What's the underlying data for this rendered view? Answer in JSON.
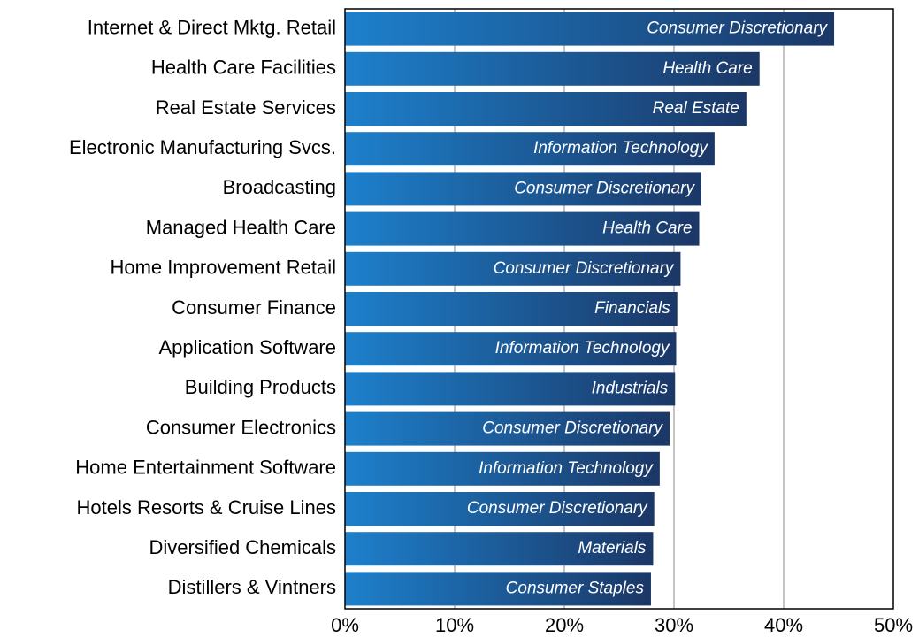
{
  "chart_data": {
    "type": "bar",
    "orientation": "horizontal",
    "categories": [
      "Internet & Direct Mktg. Retail",
      "Health Care Facilities",
      "Real Estate Services",
      "Electronic Manufacturing Svcs.",
      "Broadcasting",
      "Managed Health Care",
      "Home Improvement Retail",
      "Consumer Finance",
      "Application Software",
      "Building Products",
      "Consumer Electronics",
      "Home Entertainment Software",
      "Hotels Resorts & Cruise Lines",
      "Diversified Chemicals",
      "Distillers & Vintners"
    ],
    "values": [
      44.6,
      37.8,
      36.6,
      33.7,
      32.5,
      32.3,
      30.6,
      30.3,
      30.2,
      30.1,
      29.6,
      28.7,
      28.2,
      28.1,
      27.9
    ],
    "sectors": [
      "Consumer Discretionary",
      "Health Care",
      "Real Estate",
      "Information Technology",
      "Consumer Discretionary",
      "Health Care",
      "Consumer Discretionary",
      "Financials",
      "Information Technology",
      "Industrials",
      "Consumer Discretionary",
      "Information Technology",
      "Consumer Discretionary",
      "Materials",
      "Consumer Staples"
    ],
    "colors": [
      "#1d80cc",
      "#1b3766"
    ],
    "xlim": [
      0,
      50
    ],
    "xticks": [
      {
        "value": 0,
        "label": "0%"
      },
      {
        "value": 10,
        "label": "10%"
      },
      {
        "value": 20,
        "label": "20%"
      },
      {
        "value": 30,
        "label": "30%"
      },
      {
        "value": 40,
        "label": "40%"
      },
      {
        "value": 50,
        "label": "50%"
      }
    ],
    "grid": true
  }
}
